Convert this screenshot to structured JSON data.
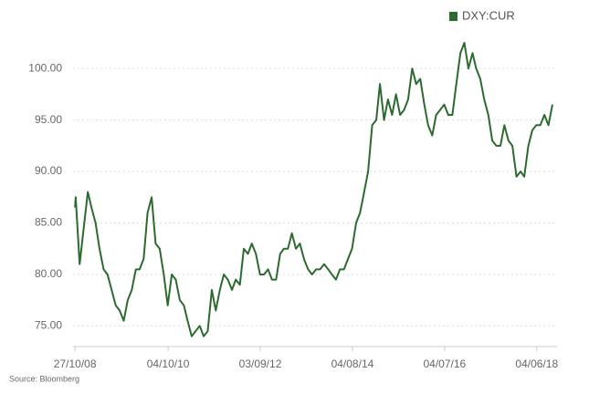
{
  "chart_data": {
    "type": "line",
    "source": "Source: Bloomberg",
    "x": [
      "27/10/08",
      "01/11/08",
      "01/12/08",
      "01/01/09",
      "01/02/09",
      "01/03/09",
      "01/04/09",
      "01/05/09",
      "01/06/09",
      "01/07/09",
      "01/08/09",
      "01/09/09",
      "01/10/09",
      "01/11/09",
      "01/12/09",
      "01/01/10",
      "01/02/10",
      "01/03/10",
      "01/04/10",
      "01/05/10",
      "01/06/10",
      "01/07/10",
      "01/08/10",
      "01/09/10",
      "01/10/10",
      "01/11/10",
      "01/12/10",
      "01/01/11",
      "01/02/11",
      "01/03/11",
      "01/04/11",
      "01/05/11",
      "01/06/11",
      "01/07/11",
      "01/08/11",
      "01/09/11",
      "01/10/11",
      "01/11/11",
      "01/12/11",
      "01/01/12",
      "01/02/12",
      "01/03/12",
      "01/04/12",
      "01/05/12",
      "01/06/12",
      "01/07/12",
      "01/08/12",
      "01/09/12",
      "01/10/12",
      "01/11/12",
      "01/12/12",
      "01/01/13",
      "01/02/13",
      "01/03/13",
      "01/04/13",
      "01/05/13",
      "01/06/13",
      "01/07/13",
      "01/08/13",
      "01/09/13",
      "01/10/13",
      "01/11/13",
      "01/12/13",
      "01/01/14",
      "01/02/14",
      "01/03/14",
      "01/04/14",
      "01/05/14",
      "01/06/14",
      "01/07/14",
      "01/08/14",
      "01/09/14",
      "01/10/14",
      "01/11/14",
      "01/12/14",
      "01/01/15",
      "01/02/15",
      "01/03/15",
      "01/04/15",
      "01/05/15",
      "01/06/15",
      "01/07/15",
      "01/08/15",
      "01/09/15",
      "01/10/15",
      "01/11/15",
      "01/12/15",
      "01/01/16",
      "01/02/16",
      "01/03/16",
      "01/04/16",
      "01/05/16",
      "01/06/16",
      "01/07/16",
      "01/08/16",
      "01/09/16",
      "01/10/16",
      "01/11/16",
      "01/12/16",
      "01/01/17",
      "01/02/17",
      "01/03/17",
      "01/04/17",
      "01/05/17",
      "01/06/17",
      "01/07/17",
      "01/08/17",
      "01/09/17",
      "01/10/17",
      "01/11/17",
      "01/12/17",
      "01/01/18",
      "01/02/18",
      "01/03/18",
      "01/04/18",
      "01/05/18",
      "01/06/18",
      "01/07/18",
      "01/08/18",
      "01/09/18",
      "01/10/18"
    ],
    "series": [
      {
        "name": "DXY:CUR",
        "color": "#2d6a2f",
        "values": [
          86.5,
          87.5,
          81,
          84.5,
          88,
          86.5,
          85,
          82.5,
          80.5,
          80,
          78.5,
          77,
          76.5,
          75.5,
          77.5,
          78.5,
          80.5,
          80.5,
          81.5,
          86,
          87.5,
          83,
          82.5,
          80,
          77,
          80,
          79.5,
          77.5,
          77,
          75.5,
          74,
          74.5,
          75,
          74,
          74.5,
          78.5,
          76.5,
          78.5,
          80,
          79.5,
          78.5,
          79.5,
          79,
          82.5,
          82,
          83,
          82,
          80,
          80,
          80.5,
          79.5,
          79.5,
          82,
          82.5,
          82.5,
          84,
          82.5,
          83,
          81.5,
          80.5,
          80,
          80.5,
          80.5,
          81,
          80.5,
          80,
          79.5,
          80.5,
          80.5,
          81.5,
          82.5,
          85,
          86,
          88,
          90,
          94.5,
          95,
          98.5,
          95,
          97,
          95.5,
          97.5,
          95.5,
          96,
          97,
          100,
          98.5,
          99,
          96.5,
          94.5,
          93.5,
          95.5,
          96,
          96.5,
          95.5,
          95.5,
          98.5,
          101.5,
          102.5,
          100,
          101.5,
          100,
          99,
          97,
          95.5,
          93,
          92.5,
          92.5,
          94.5,
          93,
          92.5,
          89.5,
          90,
          89.5,
          92.5,
          94,
          94.5,
          94.5,
          95.5,
          94.5,
          96.5
        ]
      }
    ],
    "xlim": [
      "12/10/08",
      "05/11/18"
    ],
    "xticks": [
      "27/10/08",
      "04/10/10",
      "03/09/12",
      "04/08/14",
      "04/07/16",
      "04/06/18"
    ],
    "ylim": [
      73,
      104
    ],
    "yticks": [
      {
        "value": 75,
        "label": "75.00"
      },
      {
        "value": 80,
        "label": "80.00"
      },
      {
        "value": 85,
        "label": "85.00"
      },
      {
        "value": 90,
        "label": "90.00"
      },
      {
        "value": 95,
        "label": "95.00"
      },
      {
        "value": 100,
        "label": "100.00"
      }
    ],
    "grid": true,
    "legend": "top-right"
  }
}
